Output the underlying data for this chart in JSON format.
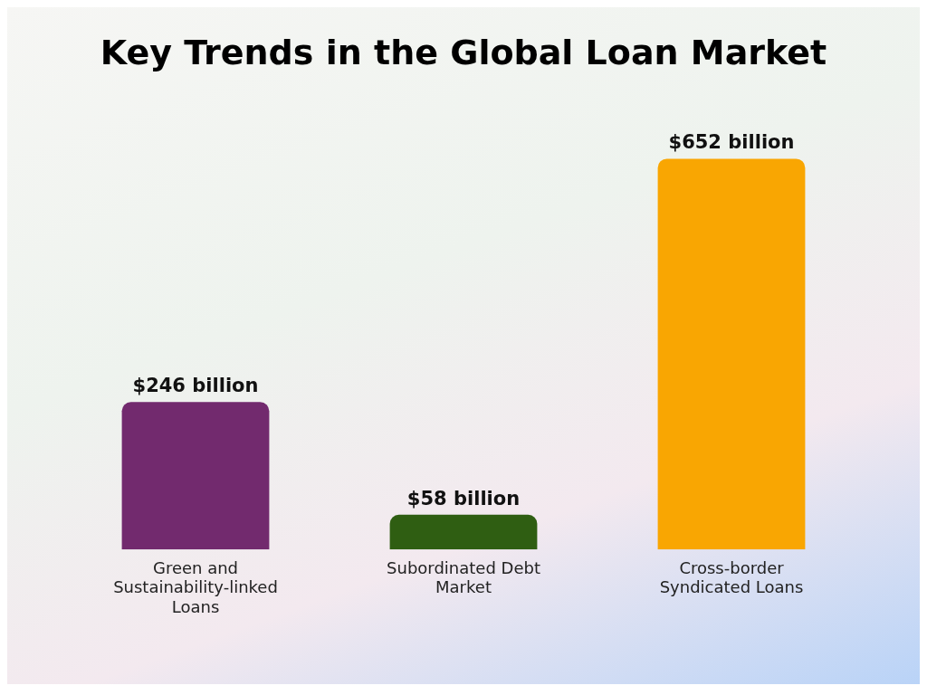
{
  "chart_data": {
    "type": "bar",
    "title": "Key Trends in the Global Loan Market",
    "categories": [
      "Green and Sustainability-linked Loans",
      "Subordinated Debt Market",
      "Cross-border Syndicated Loans"
    ],
    "values": [
      246,
      58,
      652
    ],
    "colors": [
      "#722a6e",
      "#2f5e12",
      "#f9a602"
    ],
    "value_labels": [
      "$246 billion",
      "$58 billion",
      "$652 billion"
    ],
    "grid": false,
    "legend": false
  }
}
